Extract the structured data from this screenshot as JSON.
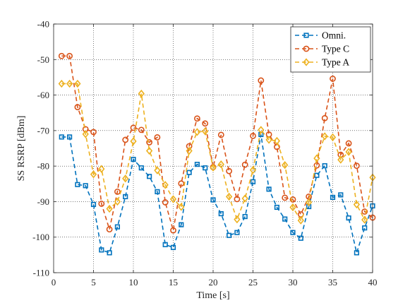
{
  "chart_data": {
    "type": "line",
    "xlabel": "Time [s]",
    "ylabel": "SS RSRP [dBm]",
    "xlim": [
      0,
      40
    ],
    "ylim": [
      -110,
      -40
    ],
    "xticks": [
      0,
      5,
      10,
      15,
      20,
      25,
      30,
      35,
      40
    ],
    "yticks": [
      -110,
      -100,
      -90,
      -80,
      -70,
      -60,
      -50,
      -40
    ],
    "xtick_labels": [
      "0",
      "5",
      "10",
      "15",
      "20",
      "25",
      "30",
      "35",
      "40"
    ],
    "ytick_labels": [
      "-110",
      "-100",
      "-90",
      "-80",
      "-70",
      "-60",
      "-50",
      "-40"
    ],
    "grid": true,
    "legend_position": "top-right",
    "x": [
      1,
      2,
      3,
      4,
      5,
      6,
      7,
      8,
      9,
      10,
      11,
      12,
      13,
      14,
      15,
      16,
      17,
      18,
      19,
      20,
      21,
      22,
      23,
      24,
      25,
      26,
      27,
      28,
      29,
      30,
      31,
      32,
      33,
      34,
      35,
      36,
      37,
      38,
      39,
      40
    ],
    "series": [
      {
        "name": "Omni.",
        "color": "#0072BD",
        "marker": "square",
        "values": [
          -71.8,
          -71.8,
          -85.2,
          -85.5,
          -90.8,
          -103.6,
          -104.4,
          -97.1,
          -88.6,
          -78.1,
          -80.5,
          -82.9,
          -87.2,
          -102.1,
          -102.9,
          -96.5,
          -81.8,
          -79.5,
          -80.5,
          -89.5,
          -93.4,
          -99.5,
          -98.7,
          -94.2,
          -84.4,
          -71.1,
          -86.5,
          -91.6,
          -94.9,
          -98.7,
          -100.3,
          -91.4,
          -82.6,
          -79.9,
          -88.8,
          -88.1,
          -94.6,
          -104.4,
          -97.4,
          -91.2
        ]
      },
      {
        "name": "Type C",
        "color": "#D95319",
        "marker": "circle",
        "values": [
          -49.0,
          -49.0,
          -63.4,
          -69.6,
          -70.4,
          -90.6,
          -97.8,
          -87.2,
          -72.6,
          -69.2,
          -69.8,
          -73.3,
          -71.9,
          -90.2,
          -98.1,
          -84.9,
          -74.4,
          -66.6,
          -68.0,
          -80.3,
          -71.2,
          -81.4,
          -89.3,
          -79.6,
          -71.5,
          -55.9,
          -71.1,
          -74.6,
          -88.9,
          -89.4,
          -93.6,
          -88.6,
          -79.8,
          -66.5,
          -55.4,
          -76.8,
          -73.6,
          -79.9,
          -92.8,
          -94.5
        ]
      },
      {
        "name": "Type A",
        "color": "#EDB120",
        "marker": "diamond",
        "values": [
          -56.8,
          -56.8,
          -56.8,
          -71.0,
          -82.3,
          -80.8,
          -92.0,
          -90.0,
          -83.5,
          -73.0,
          -59.6,
          -75.7,
          -81.2,
          -85.3,
          -89.3,
          -91.5,
          -75.7,
          -70.4,
          -70.2,
          -80.4,
          -79.5,
          -88.6,
          -95.0,
          -89.1,
          -81.1,
          -69.8,
          -72.6,
          -72.9,
          -79.7,
          -91.6,
          -95.3,
          -90.2,
          -77.8,
          -71.6,
          -71.9,
          -78.2,
          -76.0,
          -90.8,
          -95.1,
          -83.2
        ]
      }
    ]
  }
}
